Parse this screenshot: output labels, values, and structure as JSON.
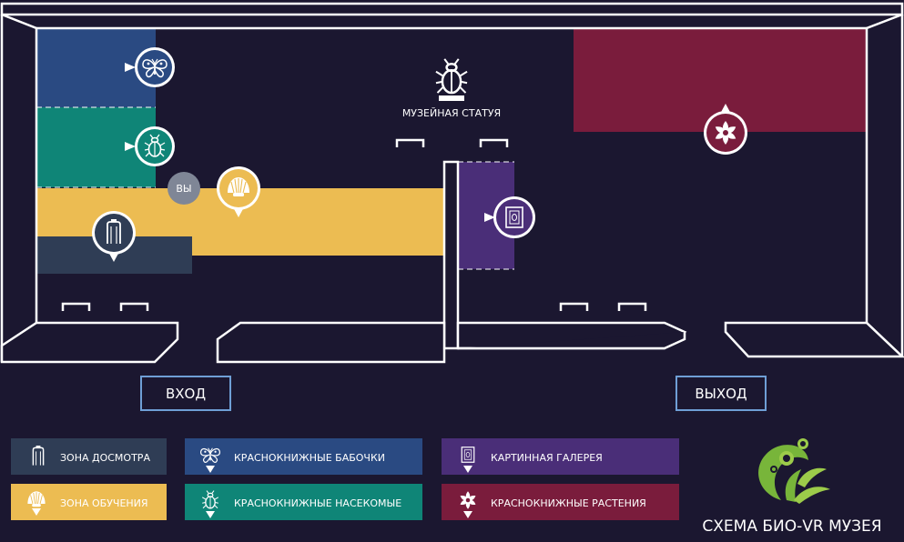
{
  "colors": {
    "background": "#1b1730",
    "butterflies": "#2a4a82",
    "insects": "#0f8577",
    "learning": "#ecbc52",
    "inspection": "#2f3d55",
    "gallery": "#4a2e78",
    "plants": "#7a1c3c",
    "you": "#7f8696",
    "wall_line": "#ffffff",
    "logo_green": "#78b53a"
  },
  "map": {
    "statue_label": "МУЗЕЙНАЯ СТАТУЯ",
    "you_label": "ВЫ",
    "entrance_label": "ВХОД",
    "exit_label": "ВЫХОД"
  },
  "icons": {
    "butterflies": "butterfly-icon",
    "insects": "beetle-icon",
    "learning": "shell-icon",
    "inspection": "metal-detector-gate-icon",
    "gallery": "picture-frame-icon",
    "plants": "flower-icon",
    "statue": "beetle-statue-icon",
    "logo": "plant-leaf-logo"
  },
  "legend": [
    {
      "key": "inspection",
      "label": "ЗОНА ДОСМОТРА"
    },
    {
      "key": "learning",
      "label": "ЗОНА ОБУЧЕНИЯ"
    },
    {
      "key": "butterflies",
      "label": "КРАСНОКНИЖНЫЕ БАБОЧКИ"
    },
    {
      "key": "insects",
      "label": "КРАСНОКНИЖНЫЕ НАСЕКОМЫЕ"
    },
    {
      "key": "gallery",
      "label": "КАРТИННАЯ ГАЛЕРЕЯ"
    },
    {
      "key": "plants",
      "label": "КРАСНОКНИЖНЫЕ РАСТЕНИЯ"
    }
  ],
  "footer": {
    "title": "СХЕМА БИО-VR МУЗЕЯ"
  }
}
